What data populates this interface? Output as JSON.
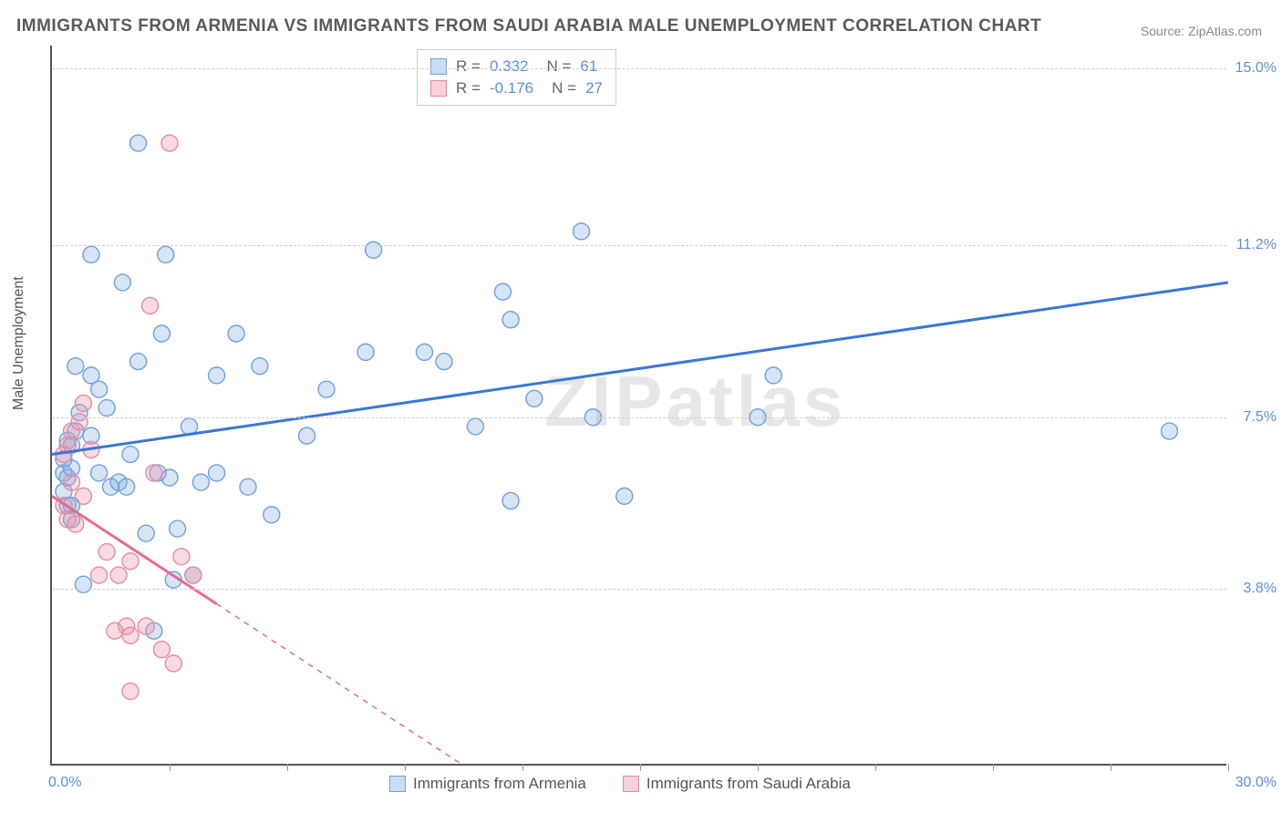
{
  "title": "IMMIGRANTS FROM ARMENIA VS IMMIGRANTS FROM SAUDI ARABIA MALE UNEMPLOYMENT CORRELATION CHART",
  "source": "Source: ZipAtlas.com",
  "ylabel": "Male Unemployment",
  "watermark": "ZIPatlas",
  "chart": {
    "type": "scatter",
    "xlim": [
      0,
      30
    ],
    "ylim": [
      0,
      15.5
    ],
    "x_ticks_pct": [
      0,
      10,
      20,
      30,
      40,
      50,
      60,
      70,
      80,
      90,
      100
    ],
    "y_gridlines": [
      3.8,
      7.5,
      11.2,
      15.0
    ],
    "y_tick_labels": [
      "3.8%",
      "7.5%",
      "11.2%",
      "15.0%"
    ],
    "x_axis_left_label": "0.0%",
    "x_axis_right_label": "30.0%",
    "background_color": "#ffffff",
    "grid_color": "#d0d0d0",
    "axis_color": "#555555",
    "marker_radius": 9,
    "marker_stroke_width": 1.4,
    "trend_line_width": 3,
    "series": [
      {
        "name": "Immigrants from Armenia",
        "swatch_fill": "#c8ddf4",
        "swatch_stroke": "#6fa0dd",
        "marker_fill": "rgba(137,178,224,0.35)",
        "marker_stroke": "#6fa0dd",
        "trend_color": "#3a77d6",
        "trend_dash": "none",
        "R": "0.332",
        "N": "61",
        "trend": {
          "x1": 0,
          "y1": 6.7,
          "x2": 30,
          "y2": 10.4
        },
        "points": [
          [
            0.3,
            5.9
          ],
          [
            0.3,
            6.3
          ],
          [
            0.4,
            5.6
          ],
          [
            0.4,
            7.0
          ],
          [
            0.4,
            6.2
          ],
          [
            0.5,
            6.9
          ],
          [
            0.5,
            6.4
          ],
          [
            0.5,
            5.6
          ],
          [
            0.6,
            8.6
          ],
          [
            0.6,
            7.2
          ],
          [
            0.7,
            7.6
          ],
          [
            0.8,
            3.9
          ],
          [
            1.0,
            8.4
          ],
          [
            1.0,
            7.1
          ],
          [
            1.0,
            11.0
          ],
          [
            1.2,
            6.3
          ],
          [
            1.2,
            8.1
          ],
          [
            1.4,
            7.7
          ],
          [
            1.5,
            6.0
          ],
          [
            1.7,
            6.1
          ],
          [
            1.8,
            10.4
          ],
          [
            1.9,
            6.0
          ],
          [
            2.0,
            6.7
          ],
          [
            2.2,
            8.7
          ],
          [
            2.2,
            13.4
          ],
          [
            2.4,
            5.0
          ],
          [
            2.6,
            2.9
          ],
          [
            2.7,
            6.3
          ],
          [
            2.8,
            9.3
          ],
          [
            2.9,
            11.0
          ],
          [
            3.0,
            6.2
          ],
          [
            3.1,
            4.0
          ],
          [
            3.2,
            5.1
          ],
          [
            3.5,
            7.3
          ],
          [
            3.6,
            4.1
          ],
          [
            3.8,
            6.1
          ],
          [
            4.2,
            8.4
          ],
          [
            4.2,
            6.3
          ],
          [
            4.7,
            9.3
          ],
          [
            5.0,
            6.0
          ],
          [
            5.3,
            8.6
          ],
          [
            5.6,
            5.4
          ],
          [
            6.5,
            7.1
          ],
          [
            7.0,
            8.1
          ],
          [
            8.0,
            8.9
          ],
          [
            8.2,
            11.1
          ],
          [
            9.5,
            8.9
          ],
          [
            10.0,
            8.7
          ],
          [
            10.8,
            7.3
          ],
          [
            11.5,
            10.2
          ],
          [
            11.7,
            9.6
          ],
          [
            11.7,
            5.7
          ],
          [
            12.3,
            7.9
          ],
          [
            13.5,
            11.5
          ],
          [
            13.8,
            7.5
          ],
          [
            14.6,
            5.8
          ],
          [
            18.0,
            7.5
          ],
          [
            18.4,
            8.4
          ],
          [
            28.5,
            7.2
          ],
          [
            0.3,
            6.6
          ],
          [
            0.5,
            5.3
          ]
        ]
      },
      {
        "name": "Immigrants from Saudi Arabia",
        "swatch_fill": "#f6d1da",
        "swatch_stroke": "#e68aa3",
        "marker_fill": "rgba(236,149,173,0.35)",
        "marker_stroke": "#e68aa3",
        "trend_color": "#e86a8f",
        "trend_dash": "6,6",
        "trend_dash_start": 4.2,
        "R": "-0.176",
        "N": "27",
        "trend": {
          "x1": 0,
          "y1": 5.8,
          "x2": 10.5,
          "y2": 0
        },
        "points": [
          [
            0.3,
            6.7
          ],
          [
            0.3,
            5.6
          ],
          [
            0.4,
            6.9
          ],
          [
            0.4,
            5.3
          ],
          [
            0.5,
            7.2
          ],
          [
            0.5,
            6.1
          ],
          [
            0.6,
            5.2
          ],
          [
            0.7,
            7.4
          ],
          [
            0.8,
            7.8
          ],
          [
            0.8,
            5.8
          ],
          [
            1.0,
            6.8
          ],
          [
            1.2,
            4.1
          ],
          [
            1.4,
            4.6
          ],
          [
            1.6,
            2.9
          ],
          [
            1.7,
            4.1
          ],
          [
            1.9,
            3.0
          ],
          [
            2.0,
            4.4
          ],
          [
            2.0,
            2.8
          ],
          [
            2.0,
            1.6
          ],
          [
            2.4,
            3.0
          ],
          [
            2.5,
            9.9
          ],
          [
            2.6,
            6.3
          ],
          [
            2.8,
            2.5
          ],
          [
            3.0,
            13.4
          ],
          [
            3.1,
            2.2
          ],
          [
            3.3,
            4.5
          ],
          [
            3.6,
            4.1
          ]
        ]
      }
    ]
  },
  "legend_bottom": [
    "Immigrants from Armenia",
    "Immigrants from Saudi Arabia"
  ]
}
